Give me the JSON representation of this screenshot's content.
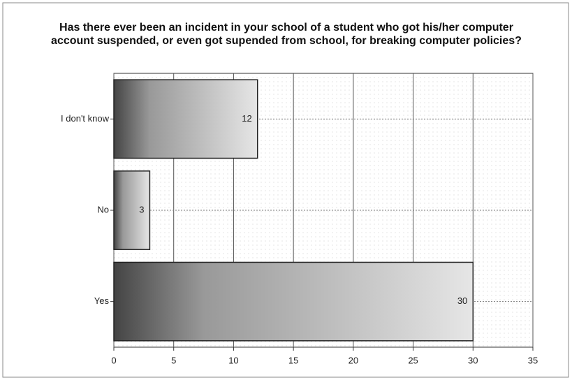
{
  "chart_data": {
    "type": "bar",
    "orientation": "horizontal",
    "title": "Has there ever been an incident in your school of a student who got his/her computer account suspended, or even got supended from school, for breaking computer policies?",
    "categories": [
      "I don't know",
      "No",
      "Yes"
    ],
    "values": [
      12,
      3,
      30
    ],
    "xlim": [
      0,
      35
    ],
    "xticks": [
      0,
      5,
      10,
      15,
      20,
      25,
      30,
      35
    ],
    "grid": true
  }
}
